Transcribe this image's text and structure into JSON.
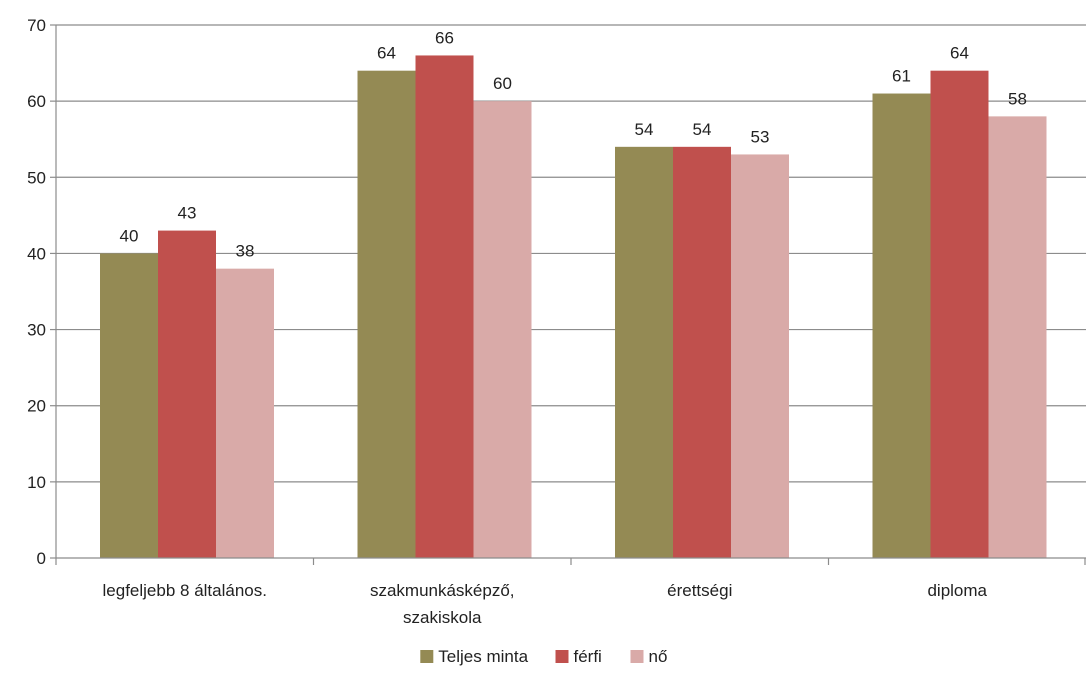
{
  "chart_data": {
    "type": "bar",
    "title": "",
    "xlabel": "",
    "ylabel": "",
    "ylim": [
      0,
      70
    ],
    "yticks": [
      0,
      10,
      20,
      30,
      40,
      50,
      60,
      70
    ],
    "grid": true,
    "legend_position": "bottom",
    "categories": [
      [
        "legfeljebb 8 általános."
      ],
      [
        "szakmunkásképző,",
        "szakiskola"
      ],
      [
        "érettségi"
      ],
      [
        "diploma"
      ]
    ],
    "series": [
      {
        "name": "Teljes minta",
        "color": "#948A54",
        "values": [
          40,
          64,
          54,
          61
        ]
      },
      {
        "name": "férfi",
        "color": "#C0504D",
        "values": [
          43,
          66,
          54,
          64
        ]
      },
      {
        "name": "nő",
        "color": "#D9AAA8",
        "values": [
          38,
          60,
          53,
          58
        ]
      }
    ]
  }
}
